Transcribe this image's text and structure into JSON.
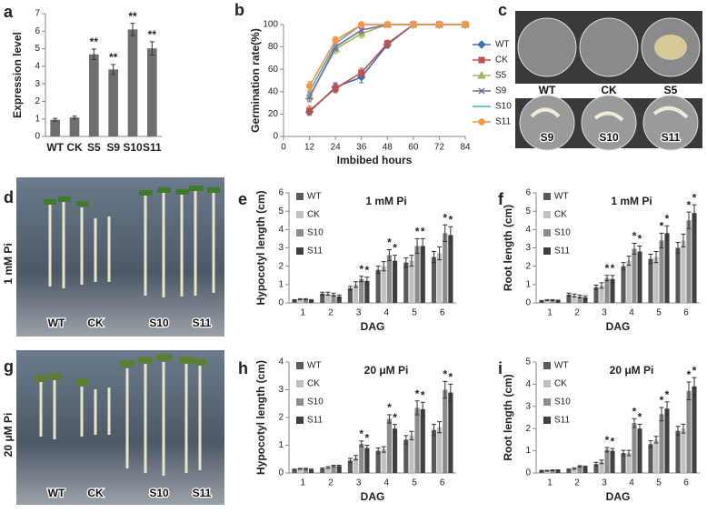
{
  "chart_data": [
    {
      "type": "bar",
      "panel": "a",
      "ylabel": "Expression level",
      "categories": [
        "WT",
        "CK",
        "S5",
        "S9",
        "S10",
        "S11"
      ],
      "values": [
        0.95,
        1.08,
        4.68,
        3.82,
        6.1,
        5.02
      ],
      "errors": [
        0.08,
        0.08,
        0.3,
        0.28,
        0.35,
        0.38
      ],
      "significance": [
        null,
        null,
        "**",
        "**",
        "**",
        "**"
      ],
      "color": "#6f6f6f",
      "ylim": [
        0,
        7
      ],
      "yticks": [
        0,
        1,
        2,
        3,
        4,
        5,
        6,
        7
      ],
      "grid": false
    },
    {
      "type": "line",
      "panel": "b",
      "ylabel": "Germination rate(%)",
      "xlabel": "Imbibed hours",
      "x": [
        12,
        24,
        36,
        48,
        60,
        72,
        84
      ],
      "xlim": [
        0,
        84
      ],
      "xticks": [
        0,
        12,
        24,
        36,
        48,
        60,
        72,
        84
      ],
      "ylim": [
        0,
        100
      ],
      "yticks": [
        0,
        20,
        40,
        60,
        80,
        100
      ],
      "grid": false,
      "series": [
        {
          "name": "WT",
          "color": "#3b6fb6",
          "marker": "diamond",
          "values": [
            22,
            44,
            53,
            82,
            100,
            100,
            100
          ],
          "errors": [
            3,
            4,
            5,
            3,
            0,
            0,
            0
          ]
        },
        {
          "name": "CK",
          "color": "#c0504d",
          "marker": "square",
          "values": [
            23,
            43,
            57,
            83,
            100,
            100,
            100
          ],
          "errors": [
            4,
            4,
            4,
            3,
            0,
            0,
            0
          ]
        },
        {
          "name": "S5",
          "color": "#9bbb59",
          "marker": "triangle",
          "values": [
            36,
            78,
            92,
            100,
            100,
            100,
            100
          ],
          "errors": [
            4,
            4,
            4,
            0,
            0,
            0,
            0
          ]
        },
        {
          "name": "S9",
          "color": "#8064a2",
          "marker": "x",
          "values": [
            35,
            80,
            95,
            100,
            100,
            100,
            100
          ],
          "errors": [
            4,
            3,
            3,
            0,
            0,
            0,
            0
          ]
        },
        {
          "name": "S10",
          "color": "#4bacc6",
          "values": [
            40,
            83,
            100,
            100,
            100,
            100,
            100
          ],
          "errors": [
            4,
            3,
            0,
            0,
            0,
            0,
            0
          ]
        },
        {
          "name": "S11",
          "color": "#f79646",
          "marker": "circle",
          "values": [
            45,
            86,
            100,
            100,
            100,
            100,
            100
          ],
          "errors": [
            4,
            3,
            0,
            0,
            0,
            0,
            0
          ]
        }
      ]
    },
    {
      "type": "bar",
      "panel": "e",
      "title": "1 mM Pi",
      "ylabel": "Hypocotyl length (cm)",
      "xlabel": "DAG",
      "categories": [
        "1",
        "2",
        "3",
        "4",
        "5",
        "6"
      ],
      "ylim": [
        0,
        6
      ],
      "yticks": [
        0,
        1,
        2,
        3,
        4,
        5,
        6
      ],
      "grid": false,
      "series": [
        {
          "name": "WT",
          "color": "#5a5a5a",
          "values": [
            0.15,
            0.5,
            0.8,
            1.8,
            2.2,
            2.5
          ],
          "errors": [
            0.03,
            0.08,
            0.1,
            0.2,
            0.25,
            0.3
          ]
        },
        {
          "name": "CK",
          "color": "#c0c0c0",
          "values": [
            0.2,
            0.5,
            1.0,
            2.0,
            2.3,
            2.7
          ],
          "errors": [
            0.03,
            0.08,
            0.15,
            0.25,
            0.3,
            0.35
          ]
        },
        {
          "name": "S10",
          "color": "#8c8c8c",
          "values": [
            0.2,
            0.45,
            1.3,
            2.6,
            3.1,
            3.8
          ],
          "errors": [
            0.03,
            0.08,
            0.15,
            0.3,
            0.4,
            0.45
          ],
          "significance": [
            null,
            null,
            "*",
            "*",
            "*",
            "*"
          ]
        },
        {
          "name": "S11",
          "color": "#404040",
          "values": [
            0.15,
            0.35,
            1.2,
            2.3,
            3.1,
            3.7
          ],
          "errors": [
            0.03,
            0.08,
            0.2,
            0.3,
            0.4,
            0.45
          ],
          "significance": [
            null,
            null,
            "*",
            "*",
            "*",
            "*"
          ]
        }
      ]
    },
    {
      "type": "bar",
      "panel": "f",
      "title": "1 mM Pi",
      "ylabel": "Root length (cm)",
      "xlabel": "DAG",
      "categories": [
        "1",
        "2",
        "3",
        "4",
        "5",
        "6"
      ],
      "ylim": [
        0,
        6
      ],
      "yticks": [
        0,
        1,
        2,
        3,
        4,
        5,
        6
      ],
      "grid": false,
      "series": [
        {
          "name": "WT",
          "color": "#5a5a5a",
          "values": [
            0.1,
            0.45,
            0.85,
            2.0,
            2.4,
            3.0
          ],
          "errors": [
            0.03,
            0.08,
            0.12,
            0.2,
            0.25,
            0.3
          ]
        },
        {
          "name": "CK",
          "color": "#c0c0c0",
          "values": [
            0.15,
            0.4,
            0.95,
            2.3,
            2.5,
            3.4
          ],
          "errors": [
            0.03,
            0.08,
            0.15,
            0.25,
            0.3,
            0.35
          ]
        },
        {
          "name": "S10",
          "color": "#8c8c8c",
          "values": [
            0.15,
            0.35,
            1.35,
            2.95,
            3.4,
            4.5
          ],
          "errors": [
            0.03,
            0.08,
            0.15,
            0.3,
            0.4,
            0.45
          ],
          "significance": [
            null,
            null,
            "*",
            "*",
            "*",
            "*"
          ]
        },
        {
          "name": "S11",
          "color": "#404040",
          "values": [
            0.12,
            0.3,
            1.3,
            2.8,
            3.8,
            4.9
          ],
          "errors": [
            0.03,
            0.08,
            0.2,
            0.3,
            0.4,
            0.45
          ],
          "significance": [
            null,
            null,
            "*",
            "*",
            "*",
            "*"
          ]
        }
      ]
    },
    {
      "type": "bar",
      "panel": "h",
      "title": "20 μM Pi",
      "ylabel": "Hypocotyl length (cm)",
      "xlabel": "DAG",
      "categories": [
        "1",
        "2",
        "3",
        "4",
        "5",
        "6"
      ],
      "ylim": [
        0,
        4
      ],
      "yticks": [
        0,
        1,
        2,
        3,
        4
      ],
      "grid": false,
      "series": [
        {
          "name": "WT",
          "color": "#5a5a5a",
          "values": [
            0.12,
            0.15,
            0.45,
            0.8,
            1.2,
            1.55
          ],
          "errors": [
            0.02,
            0.03,
            0.08,
            0.1,
            0.15,
            0.2
          ]
        },
        {
          "name": "CK",
          "color": "#c0c0c0",
          "values": [
            0.15,
            0.2,
            0.55,
            0.85,
            1.35,
            1.65
          ],
          "errors": [
            0.02,
            0.03,
            0.08,
            0.1,
            0.15,
            0.2
          ]
        },
        {
          "name": "S10",
          "color": "#8c8c8c",
          "values": [
            0.15,
            0.25,
            1.05,
            1.95,
            2.35,
            3.0
          ],
          "errors": [
            0.02,
            0.03,
            0.1,
            0.15,
            0.25,
            0.3
          ],
          "significance": [
            null,
            null,
            "*",
            "*",
            "*",
            "*"
          ]
        },
        {
          "name": "S11",
          "color": "#404040",
          "values": [
            0.12,
            0.25,
            0.9,
            1.6,
            2.3,
            2.9
          ],
          "errors": [
            0.02,
            0.03,
            0.1,
            0.15,
            0.25,
            0.3
          ],
          "significance": [
            null,
            null,
            "*",
            "*",
            "*",
            "*"
          ]
        }
      ]
    },
    {
      "type": "bar",
      "panel": "i",
      "title": "20 μM Pi",
      "ylabel": "Root length (cm)",
      "xlabel": "DAG",
      "categories": [
        "1",
        "2",
        "3",
        "4",
        "5",
        "6"
      ],
      "ylim": [
        0,
        5
      ],
      "yticks": [
        0,
        1,
        2,
        3,
        4,
        5
      ],
      "grid": false,
      "series": [
        {
          "name": "WT",
          "color": "#5a5a5a",
          "values": [
            0.1,
            0.15,
            0.4,
            0.9,
            1.3,
            1.9
          ],
          "errors": [
            0.02,
            0.03,
            0.08,
            0.12,
            0.15,
            0.2
          ]
        },
        {
          "name": "CK",
          "color": "#c0c0c0",
          "values": [
            0.1,
            0.2,
            0.5,
            0.9,
            1.5,
            2.0
          ],
          "errors": [
            0.02,
            0.03,
            0.08,
            0.12,
            0.15,
            0.2
          ]
        },
        {
          "name": "S10",
          "color": "#8c8c8c",
          "values": [
            0.12,
            0.3,
            1.05,
            2.25,
            2.65,
            3.7
          ],
          "errors": [
            0.02,
            0.03,
            0.1,
            0.2,
            0.3,
            0.4
          ],
          "significance": [
            null,
            null,
            "*",
            "*",
            "*",
            "*"
          ]
        },
        {
          "name": "S11",
          "color": "#404040",
          "values": [
            0.12,
            0.28,
            1.0,
            2.0,
            2.9,
            3.9
          ],
          "errors": [
            0.02,
            0.03,
            0.1,
            0.2,
            0.3,
            0.4
          ],
          "significance": [
            null,
            null,
            "*",
            "*",
            "*",
            "*"
          ]
        }
      ]
    }
  ],
  "photos": [
    {
      "panel": "c",
      "labels": [
        "WT",
        "CK",
        "S5",
        "S9",
        "S10",
        "S11"
      ]
    },
    {
      "panel": "d",
      "condition": "1 mM Pi",
      "labels": [
        "WT",
        "CK",
        "S10",
        "S11"
      ]
    },
    {
      "panel": "g",
      "condition": "20 μM Pi",
      "labels": [
        "WT",
        "CK",
        "S10",
        "S11"
      ]
    }
  ]
}
